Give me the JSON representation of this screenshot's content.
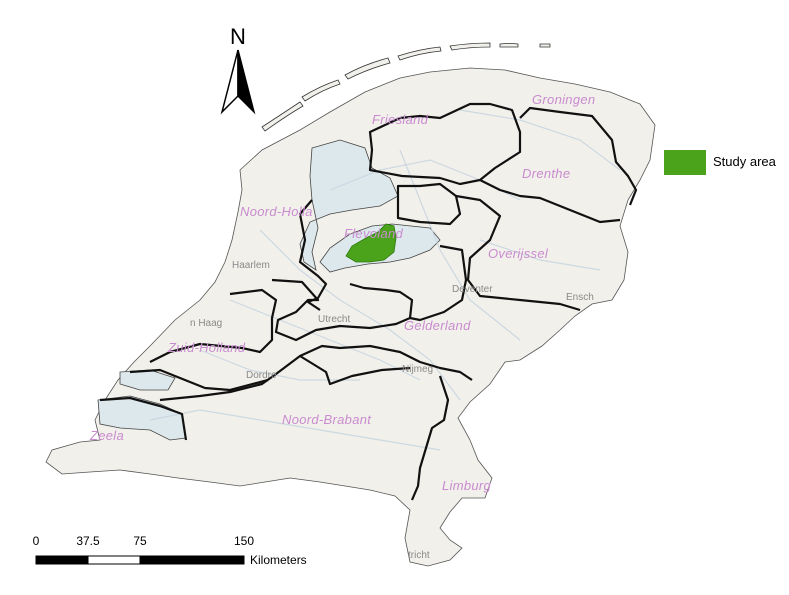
{
  "map": {
    "north_label": "N",
    "provinces": [
      "Groningen",
      "Friesland",
      "Drenthe",
      "Noord-Holland",
      "Flevoland",
      "Overijssel",
      "Gelderland",
      "Utrecht",
      "Zuid-Holland",
      "Zeeland",
      "Noord-Brabant",
      "Limburg"
    ],
    "province_labels": {
      "groningen": "Groningen",
      "friesland": "Friesland",
      "drenthe": "Drenthe",
      "noord_holland": "Noord-Holla",
      "flevoland": "Flevoland",
      "overijssel": "Overijssel",
      "gelderland": "Gelderland",
      "zuid_holland": "Zuid-Holland",
      "noord_brabant": "Noord-Brabant",
      "zeeland": "Zeela",
      "limburg": "Limburg"
    },
    "city_labels": {
      "haarlem": "Haarlem",
      "den_haag": "n Haag",
      "utrecht": "Utrecht",
      "deventer": "Deventer",
      "enschede": "Ensch",
      "dordrecht": "Dordre",
      "nijmegen": "Nijmeg",
      "maastricht": "tricht"
    }
  },
  "legend": {
    "label": "Study area",
    "color": "#4aa31a"
  },
  "scale_bar": {
    "ticks": [
      "0",
      "37.5",
      "75",
      "150"
    ],
    "values": [
      0,
      37.5,
      75,
      150
    ],
    "units": "Kilometers"
  },
  "colors": {
    "land": "#f2f0ea",
    "water": "#dde8ec",
    "border": "#111111",
    "roads": "#c8d6e2",
    "study_area": "#4aa31a"
  }
}
